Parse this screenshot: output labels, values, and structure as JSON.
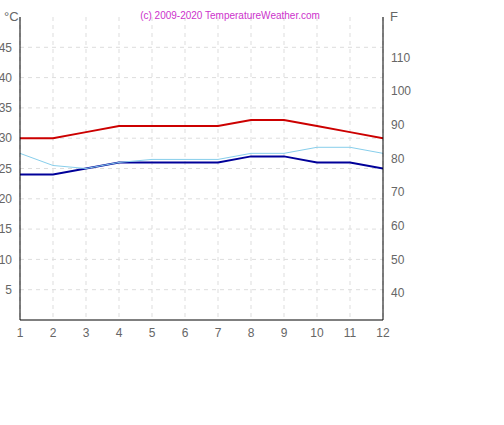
{
  "chart_data": {
    "type": "line",
    "title": "(c) 2009-2020 TemperatureWeather.com",
    "y_label": "°C",
    "y2_label": "F",
    "x": [
      1,
      2,
      3,
      4,
      5,
      6,
      7,
      8,
      9,
      10,
      11,
      12
    ],
    "xlim": [
      1,
      12
    ],
    "xticks": [
      1,
      2,
      3,
      4,
      5,
      6,
      7,
      8,
      9,
      10,
      11,
      12
    ],
    "ylim": [
      0,
      50
    ],
    "yticks": [
      5,
      10,
      15,
      20,
      25,
      30,
      35,
      40,
      45
    ],
    "y2lim": [
      32,
      122
    ],
    "y2ticks": [
      40,
      50,
      60,
      70,
      80,
      90,
      100,
      110
    ],
    "grid": true,
    "series": [
      {
        "color": "#cc0000",
        "values": [
          30,
          30,
          31,
          32,
          32,
          32,
          32,
          33,
          33,
          32,
          31,
          30
        ]
      },
      {
        "color": "#000099",
        "values": [
          24,
          24,
          25,
          26,
          26,
          26,
          26,
          27,
          27,
          26,
          26,
          25
        ]
      },
      {
        "color": "#87ceeb",
        "values": [
          27.5,
          25.5,
          25,
          26,
          26.5,
          26.5,
          26.5,
          27.5,
          27.5,
          28.5,
          28.5,
          27.5
        ]
      }
    ]
  }
}
